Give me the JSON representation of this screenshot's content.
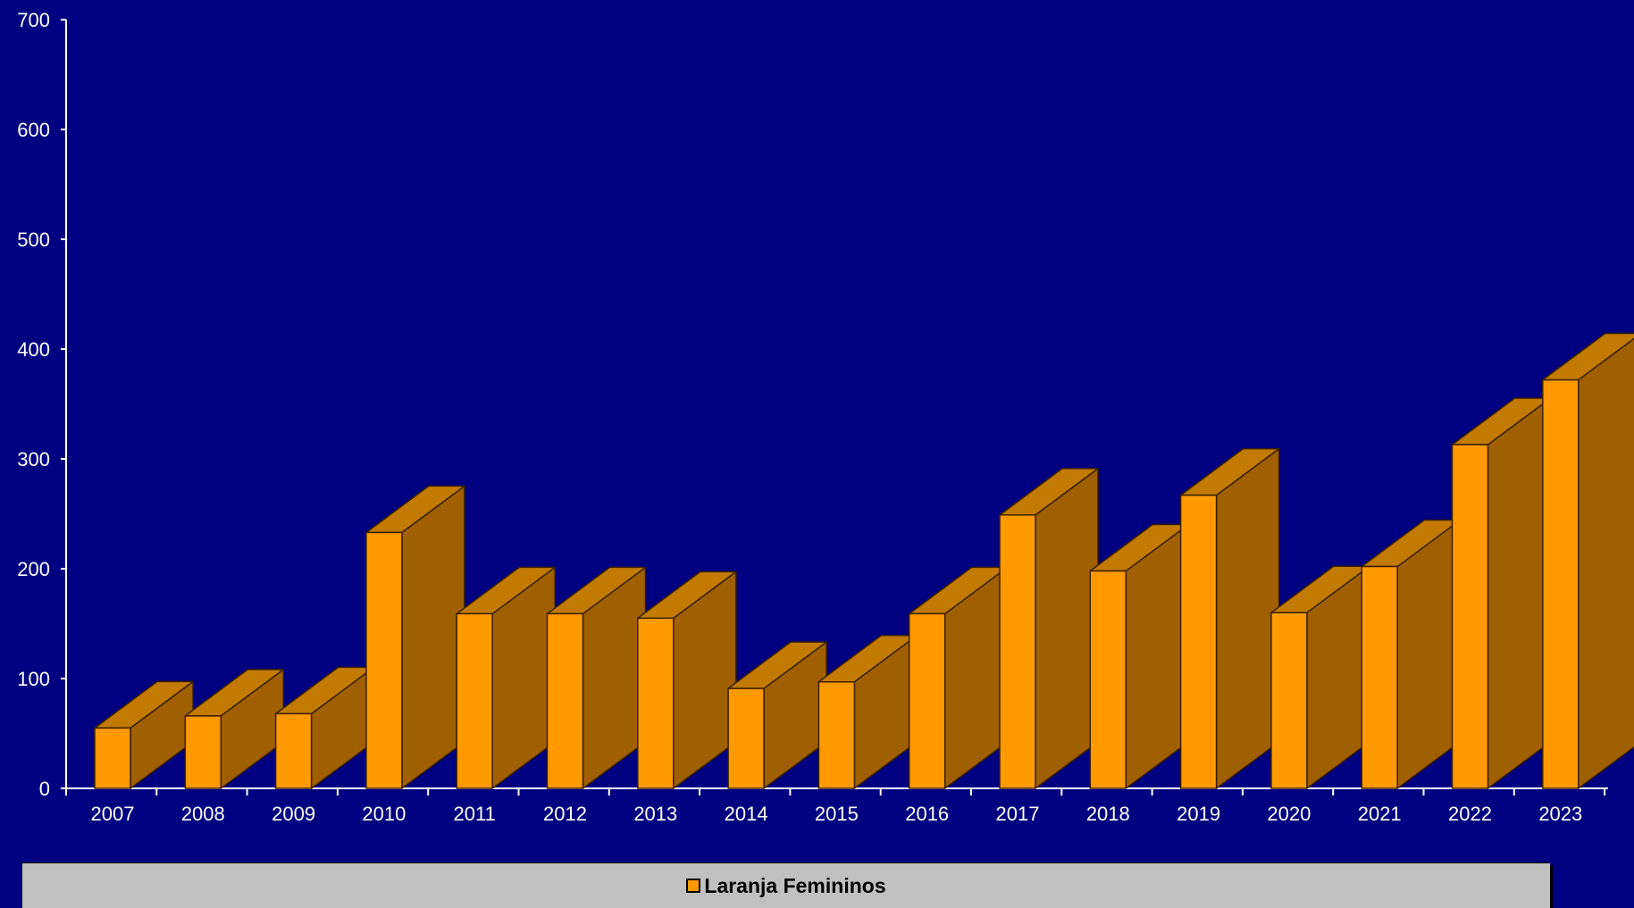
{
  "chart_data": {
    "type": "bar",
    "categories": [
      "2007",
      "2008",
      "2009",
      "2010",
      "2011",
      "2012",
      "2013",
      "2014",
      "2015",
      "2016",
      "2017",
      "2018",
      "2019",
      "2020",
      "2021",
      "2022",
      "2023"
    ],
    "series": [
      {
        "name": "Laranja Femininos",
        "values": [
          55,
          66,
          68,
          233,
          159,
          159,
          155,
          91,
          97,
          159,
          249,
          198,
          267,
          160,
          202,
          313,
          372
        ],
        "color": "#ff9900",
        "side_color": "#a05f00",
        "top_color": "#c27a00"
      }
    ],
    "yticks": [
      "0",
      "100",
      "200",
      "300",
      "400",
      "500",
      "600",
      "700"
    ],
    "ylim": [
      0,
      700
    ],
    "background": "#000080",
    "legend": {
      "position": "bottom"
    }
  }
}
